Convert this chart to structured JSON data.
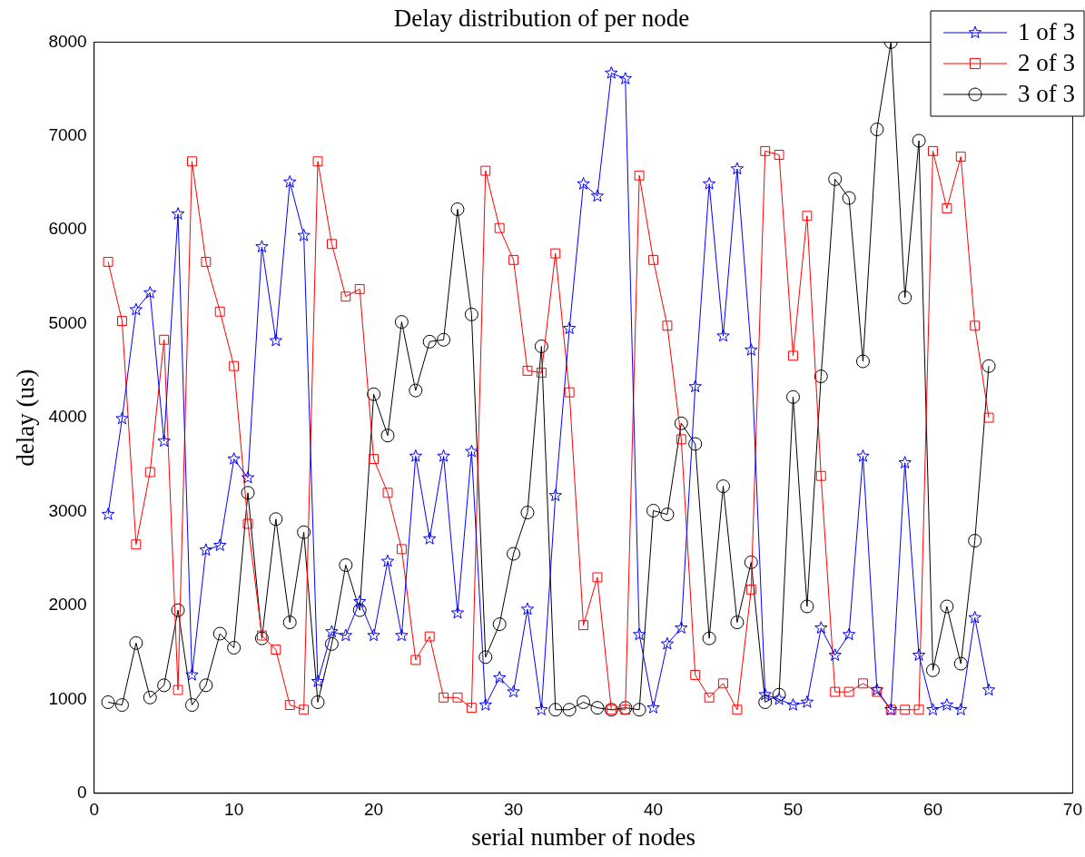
{
  "chart_data": {
    "type": "line",
    "title": "Delay distribution of per node",
    "xlabel": "serial number of nodes",
    "ylabel": "delay (us)",
    "x": [
      1,
      2,
      3,
      4,
      5,
      6,
      7,
      8,
      9,
      10,
      11,
      12,
      13,
      14,
      15,
      16,
      17,
      18,
      19,
      20,
      21,
      22,
      23,
      24,
      25,
      26,
      27,
      28,
      29,
      30,
      31,
      32,
      33,
      34,
      35,
      36,
      37,
      38,
      39,
      40,
      41,
      42,
      43,
      44,
      45,
      46,
      47,
      48,
      49,
      50,
      51,
      52,
      53,
      54,
      55,
      56,
      57,
      58,
      59,
      60,
      61,
      62,
      63,
      64
    ],
    "xlim": [
      0,
      70
    ],
    "xticks": [
      0,
      10,
      20,
      30,
      40,
      50,
      60,
      70
    ],
    "ylim": [
      0,
      8000
    ],
    "yticks": [
      0,
      1000,
      2000,
      3000,
      4000,
      5000,
      6000,
      7000,
      8000
    ],
    "grid": false,
    "legend": "top right",
    "line_style": "solid",
    "series": [
      {
        "name": "1 of 3",
        "color": "#0000ff",
        "marker": "star",
        "values": [
          2970,
          3990,
          5150,
          5330,
          3750,
          6170,
          1260,
          2590,
          2640,
          3560,
          3360,
          5820,
          4820,
          6510,
          5940,
          1190,
          1720,
          1680,
          2040,
          1680,
          2470,
          1680,
          3590,
          2710,
          3590,
          1920,
          3640,
          940,
          1230,
          1080,
          1960,
          890,
          3170,
          4950,
          6490,
          6360,
          7670,
          7610,
          1690,
          910,
          1590,
          1760,
          4330,
          6490,
          4870,
          6650,
          4720,
          1050,
          1000,
          940,
          970,
          1760,
          1470,
          1690,
          3590,
          1100,
          890,
          3520,
          1470,
          890,
          940,
          890,
          1870,
          1100
        ]
      },
      {
        "name": "2 of 3",
        "color": "#ff0000",
        "marker": "square",
        "values": [
          5660,
          5030,
          2650,
          3420,
          4830,
          1100,
          6730,
          5660,
          5130,
          4550,
          2870,
          1680,
          1530,
          940,
          890,
          6730,
          5850,
          5290,
          5370,
          3560,
          3200,
          2600,
          1420,
          1670,
          1020,
          1020,
          910,
          6630,
          6020,
          5680,
          4500,
          4480,
          5750,
          4270,
          1790,
          2300,
          890,
          890,
          6580,
          5680,
          4980,
          3770,
          1260,
          1020,
          1170,
          890,
          2170,
          6840,
          6800,
          4660,
          6150,
          3380,
          1080,
          1080,
          1170,
          1080,
          890,
          890,
          890,
          6840,
          6230,
          6780,
          4980,
          4000
        ]
      },
      {
        "name": "3 of 3",
        "color": "#000000",
        "marker": "circle",
        "values": [
          970,
          940,
          1600,
          1020,
          1150,
          1950,
          940,
          1150,
          1700,
          1550,
          3200,
          1650,
          2920,
          1820,
          2780,
          970,
          1590,
          2430,
          1950,
          4250,
          3810,
          5020,
          4290,
          4810,
          4830,
          6220,
          5100,
          1450,
          1800,
          2550,
          2990,
          4760,
          890,
          890,
          970,
          910,
          890,
          910,
          890,
          3010,
          2970,
          3940,
          3720,
          1650,
          3270,
          1820,
          2460,
          970,
          1050,
          4220,
          1990,
          4440,
          6540,
          6340,
          4600,
          7070,
          8000,
          5280,
          6950,
          1310,
          1990,
          1380,
          2690,
          4550
        ]
      }
    ]
  }
}
